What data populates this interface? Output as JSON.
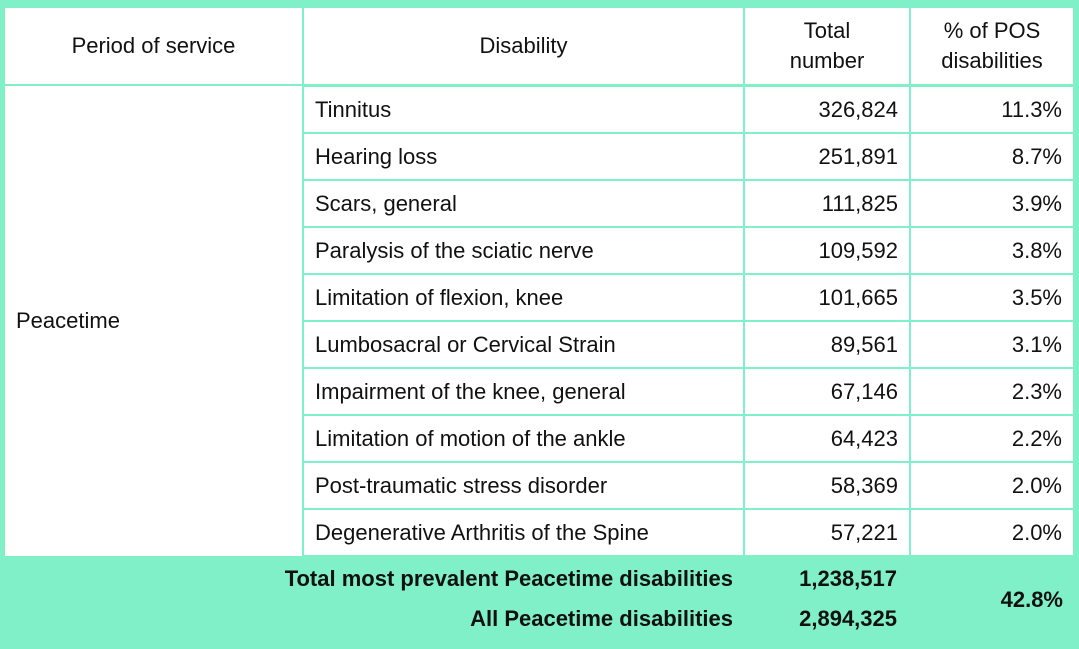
{
  "table": {
    "columns": [
      "Period of service",
      "Disability",
      "Total number",
      "% of POS disabilities"
    ],
    "period": "Peacetime",
    "rows": [
      [
        "Tinnitus",
        "326,824",
        "11.3%"
      ],
      [
        "Hearing loss",
        "251,891",
        "8.7%"
      ],
      [
        "Scars, general",
        "111,825",
        "3.9%"
      ],
      [
        "Paralysis of the sciatic nerve",
        "109,592",
        "3.8%"
      ],
      [
        "Limitation of flexion, knee",
        "101,665",
        "3.5%"
      ],
      [
        "Lumbosacral or Cervical Strain",
        "89,561",
        "3.1%"
      ],
      [
        "Impairment of the knee, general",
        "67,146",
        "2.3%"
      ],
      [
        "Limitation of motion of the ankle",
        "64,423",
        "2.2%"
      ],
      [
        "Post-traumatic stress disorder",
        "58,369",
        "2.0%"
      ],
      [
        "Degenerative Arthritis of the Spine",
        "57,221",
        "2.0%"
      ]
    ],
    "footer": {
      "total_label": "Total most prevalent Peacetime disabilities",
      "total_value": "1,238,517",
      "all_label": "All Peacetime disabilities",
      "all_value": "2,894,325",
      "percent": "42.8%"
    }
  }
}
